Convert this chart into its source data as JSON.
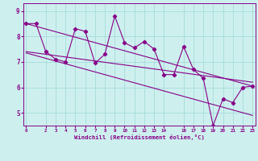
{
  "background_color": "#cdf0ee",
  "grid_color": "#aadddd",
  "line_color": "#880088",
  "x_hours": [
    0,
    1,
    2,
    3,
    4,
    5,
    6,
    7,
    8,
    9,
    10,
    11,
    12,
    13,
    14,
    15,
    16,
    17,
    18,
    19,
    20,
    21,
    22,
    23
  ],
  "y_values": [
    8.5,
    8.5,
    7.4,
    7.1,
    7.0,
    8.3,
    8.2,
    6.95,
    7.3,
    8.8,
    7.75,
    7.55,
    7.8,
    7.5,
    6.5,
    6.5,
    7.6,
    6.7,
    6.35,
    4.5,
    5.55,
    5.4,
    6.0,
    6.05
  ],
  "ylim": [
    4.5,
    9.3
  ],
  "yticks": [
    5,
    6,
    7,
    8,
    9
  ],
  "xtick_positions": [
    0,
    2,
    3,
    4,
    5,
    6,
    7,
    8,
    9,
    10,
    11,
    12,
    13,
    14,
    16,
    17,
    18,
    19,
    20,
    21,
    22,
    23
  ],
  "xtick_labels": [
    "0",
    "2",
    "3",
    "4",
    "5",
    "6",
    "7",
    "8",
    "9",
    "10",
    "11",
    "12",
    "13",
    "14",
    "16",
    "17",
    "18",
    "19",
    "20",
    "21",
    "22",
    "23"
  ],
  "xlabel": "Windchill (Refroidissement éolien,°C)",
  "upper_line": [
    8.5,
    6.05
  ],
  "mid_line": [
    7.4,
    6.2
  ],
  "lower_line": [
    7.35,
    4.9
  ]
}
